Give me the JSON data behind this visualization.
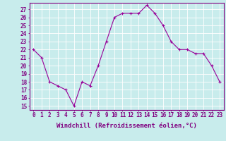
{
  "x": [
    0,
    1,
    2,
    3,
    4,
    5,
    6,
    7,
    8,
    9,
    10,
    11,
    12,
    13,
    14,
    15,
    16,
    17,
    18,
    19,
    20,
    21,
    22,
    23
  ],
  "y": [
    22,
    21,
    18,
    17.5,
    17,
    15,
    18,
    17.5,
    20,
    23,
    26,
    26.5,
    26.5,
    26.5,
    27.5,
    26.5,
    25,
    23,
    22,
    22,
    21.5,
    21.5,
    20,
    18
  ],
  "line_color": "#990099",
  "marker": "+",
  "marker_size": 3,
  "marker_lw": 0.8,
  "line_width": 0.8,
  "bg_color": "#c8ecec",
  "grid_color": "#ffffff",
  "xlabel": "Windchill (Refroidissement éolien,°C)",
  "xlabel_color": "#800080",
  "tick_color": "#800080",
  "axis_color": "#800080",
  "ylabel_ticks": [
    15,
    16,
    17,
    18,
    19,
    20,
    21,
    22,
    23,
    24,
    25,
    26,
    27
  ],
  "ylim": [
    14.5,
    27.8
  ],
  "xlim": [
    -0.5,
    23.5
  ],
  "xtick_labels": [
    "0",
    "1",
    "2",
    "3",
    "4",
    "5",
    "6",
    "7",
    "8",
    "9",
    "10",
    "11",
    "12",
    "13",
    "14",
    "15",
    "16",
    "17",
    "18",
    "19",
    "20",
    "21",
    "22",
    "23"
  ],
  "tick_fontsize": 5.5,
  "xlabel_fontsize": 6.5,
  "xlabel_fontweight": "bold"
}
